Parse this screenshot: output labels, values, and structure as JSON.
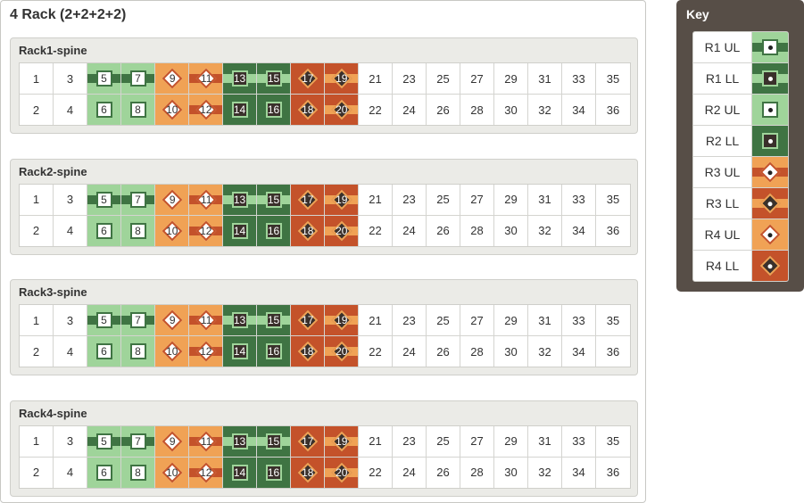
{
  "title": "4 Rack (2+2+2+2)",
  "colors": {
    "light_green": "#9fd49a",
    "dark_green": "#3f7443",
    "light_orange": "#f0a255",
    "dark_orange": "#c4522a",
    "dark_fill": "#3a302b",
    "white": "#ffffff"
  },
  "styles": {
    "r1ul": {
      "bg": "light_green",
      "stripe": "dark_green",
      "shape": "square",
      "fill": "white",
      "border": "dark_green"
    },
    "r1ll": {
      "bg": "dark_green",
      "stripe": "light_green",
      "shape": "square",
      "fill": "dark_fill",
      "border": "light_green"
    },
    "r2ul": {
      "bg": "light_green",
      "stripe": null,
      "shape": "square",
      "fill": "white",
      "border": "dark_green"
    },
    "r2ll": {
      "bg": "dark_green",
      "stripe": null,
      "shape": "square",
      "fill": "dark_fill",
      "border": "light_green"
    },
    "r3ul": {
      "bg": "light_orange",
      "stripe": "dark_orange",
      "shape": "diamond",
      "fill": "white",
      "border": "dark_orange"
    },
    "r3ll": {
      "bg": "dark_orange",
      "stripe": "light_orange",
      "shape": "diamond",
      "fill": "dark_fill",
      "border": "light_orange"
    },
    "r4ul": {
      "bg": "light_orange",
      "stripe": null,
      "shape": "diamond",
      "fill": "white",
      "border": "dark_orange"
    },
    "r4ll": {
      "bg": "dark_orange",
      "stripe": null,
      "shape": "diamond",
      "fill": "dark_fill",
      "border": "light_orange"
    }
  },
  "port_styles": {
    "5": "r1ul",
    "7": "r1ul",
    "6": "r2ul",
    "8": "r2ul",
    "9": "r4ul",
    "10": "r4ul",
    "11": "r3ul",
    "12": "r3ul",
    "13": "r1ll",
    "15": "r1ll",
    "14": "r2ll",
    "16": "r2ll",
    "17": "r4ll",
    "18": "r4ll",
    "19": "r3ll",
    "20": "r3ll"
  },
  "racks": [
    {
      "name": "Rack1-spine",
      "top": [
        "1",
        "3",
        "5",
        "7",
        "9",
        "11",
        "13",
        "15",
        "17",
        "19",
        "21",
        "23",
        "25",
        "27",
        "29",
        "31",
        "33",
        "35"
      ],
      "bottom": [
        "2",
        "4",
        "6",
        "8",
        "10",
        "12",
        "14",
        "16",
        "18",
        "20",
        "22",
        "24",
        "26",
        "28",
        "30",
        "32",
        "34",
        "36"
      ]
    },
    {
      "name": "Rack2-spine",
      "top": [
        "1",
        "3",
        "5",
        "7",
        "9",
        "11",
        "13",
        "15",
        "17",
        "19",
        "21",
        "23",
        "25",
        "27",
        "29",
        "31",
        "33",
        "35"
      ],
      "bottom": [
        "2",
        "4",
        "6",
        "8",
        "10",
        "12",
        "14",
        "16",
        "18",
        "20",
        "22",
        "24",
        "26",
        "28",
        "30",
        "32",
        "34",
        "36"
      ]
    },
    {
      "name": "Rack3-spine",
      "top": [
        "1",
        "3",
        "5",
        "7",
        "9",
        "11",
        "13",
        "15",
        "17",
        "19",
        "21",
        "23",
        "25",
        "27",
        "29",
        "31",
        "33",
        "35"
      ],
      "bottom": [
        "2",
        "4",
        "6",
        "8",
        "10",
        "12",
        "14",
        "16",
        "18",
        "20",
        "22",
        "24",
        "26",
        "28",
        "30",
        "32",
        "34",
        "36"
      ]
    },
    {
      "name": "Rack4-spine",
      "top": [
        "1",
        "3",
        "5",
        "7",
        "9",
        "11",
        "13",
        "15",
        "17",
        "19",
        "21",
        "23",
        "25",
        "27",
        "29",
        "31",
        "33",
        "35"
      ],
      "bottom": [
        "2",
        "4",
        "6",
        "8",
        "10",
        "12",
        "14",
        "16",
        "18",
        "20",
        "22",
        "24",
        "26",
        "28",
        "30",
        "32",
        "34",
        "36"
      ]
    }
  ],
  "key": {
    "title": "Key",
    "items": [
      {
        "label": "R1 UL",
        "style": "r1ul"
      },
      {
        "label": "R1 LL",
        "style": "r1ll"
      },
      {
        "label": "R2 UL",
        "style": "r2ul"
      },
      {
        "label": "R2 LL",
        "style": "r2ll"
      },
      {
        "label": "R3 UL",
        "style": "r3ul"
      },
      {
        "label": "R3 LL",
        "style": "r3ll"
      },
      {
        "label": "R4 UL",
        "style": "r4ul"
      },
      {
        "label": "R4 LL",
        "style": "r4ll"
      }
    ]
  }
}
